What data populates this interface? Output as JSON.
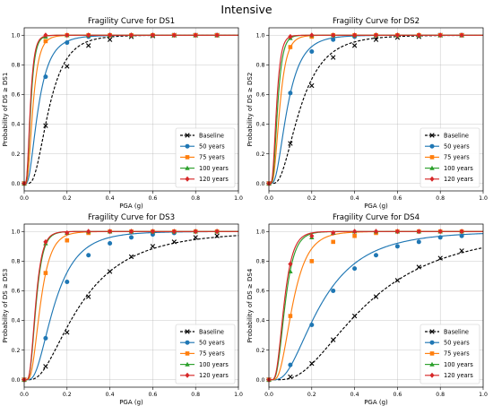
{
  "figure": {
    "suptitle": "Intensive"
  },
  "styles": {
    "Baseline": {
      "color": "#000000",
      "marker": "x",
      "dash": true
    },
    "50 years": {
      "color": "#1f77b4",
      "marker": "o"
    },
    "75 years": {
      "color": "#ff7f0e",
      "marker": "s"
    },
    "100 years": {
      "color": "#2ca02c",
      "marker": "^"
    },
    "120 years": {
      "color": "#d62728",
      "marker": "D"
    }
  },
  "chart_data": [
    {
      "type": "line",
      "title": "Fragility Curve for DS1",
      "xlabel": "PGA (g)",
      "ylabel": "Probability of DS ≥ DS1",
      "xlim": [
        0,
        1.0
      ],
      "ylim": [
        0,
        1.0
      ],
      "xticks": [
        "0.0",
        "0.2",
        "0.4",
        "0.6",
        "0.8",
        "1.0"
      ],
      "yticks": [
        "0.0",
        "0.2",
        "0.4",
        "0.6",
        "0.8",
        "1.0"
      ],
      "grid": true,
      "legend_position": "lower right",
      "x": [
        0.1,
        0.2,
        0.3,
        0.4,
        0.5,
        0.6,
        0.7,
        0.8,
        0.9
      ],
      "series": [
        {
          "name": "Baseline",
          "values": [
            0.39,
            0.79,
            0.93,
            0.97,
            0.99,
            0.995,
            1.0,
            1.0,
            1.0
          ],
          "median": 0.115,
          "beta": 0.55
        },
        {
          "name": "50 years",
          "values": [
            0.72,
            0.95,
            0.99,
            1.0,
            1.0,
            1.0,
            1.0,
            1.0,
            1.0
          ],
          "median": 0.065,
          "beta": 0.65
        },
        {
          "name": "75 years",
          "values": [
            0.96,
            1.0,
            1.0,
            1.0,
            1.0,
            1.0,
            1.0,
            1.0,
            1.0
          ],
          "median": 0.04,
          "beta": 0.55
        },
        {
          "name": "100 years",
          "values": [
            0.99,
            1.0,
            1.0,
            1.0,
            1.0,
            1.0,
            1.0,
            1.0,
            1.0
          ],
          "median": 0.03,
          "beta": 0.5
        },
        {
          "name": "120 years",
          "values": [
            1.0,
            1.0,
            1.0,
            1.0,
            1.0,
            1.0,
            1.0,
            1.0,
            1.0
          ],
          "median": 0.028,
          "beta": 0.5
        }
      ]
    },
    {
      "type": "line",
      "title": "Fragility Curve for DS2",
      "xlabel": "PGA (g)",
      "ylabel": "Probability of DS ≥ DS2",
      "xlim": [
        0,
        1.0
      ],
      "ylim": [
        0,
        1.0
      ],
      "xticks": [
        "0.0",
        "0.2",
        "0.4",
        "0.6",
        "0.8",
        "1.0"
      ],
      "yticks": [
        "0.0",
        "0.2",
        "0.4",
        "0.6",
        "0.8",
        "1.0"
      ],
      "grid": true,
      "legend_position": "lower right",
      "x": [
        0.1,
        0.2,
        0.3,
        0.4,
        0.5,
        0.6,
        0.7,
        0.8,
        0.9
      ],
      "series": [
        {
          "name": "Baseline",
          "values": [
            0.27,
            0.66,
            0.85,
            0.93,
            0.97,
            0.985,
            0.99,
            1.0,
            1.0
          ],
          "median": 0.145,
          "beta": 0.6
        },
        {
          "name": "50 years",
          "values": [
            0.61,
            0.89,
            0.97,
            0.99,
            1.0,
            1.0,
            1.0,
            1.0,
            1.0
          ],
          "median": 0.085,
          "beta": 0.6
        },
        {
          "name": "75 years",
          "values": [
            0.92,
            0.99,
            1.0,
            1.0,
            1.0,
            1.0,
            1.0,
            1.0,
            1.0
          ],
          "median": 0.05,
          "beta": 0.5
        },
        {
          "name": "100 years",
          "values": [
            0.98,
            1.0,
            1.0,
            1.0,
            1.0,
            1.0,
            1.0,
            1.0,
            1.0
          ],
          "median": 0.04,
          "beta": 0.45
        },
        {
          "name": "120 years",
          "values": [
            0.99,
            1.0,
            1.0,
            1.0,
            1.0,
            1.0,
            1.0,
            1.0,
            1.0
          ],
          "median": 0.035,
          "beta": 0.45
        }
      ]
    },
    {
      "type": "line",
      "title": "Fragility Curve for DS3",
      "xlabel": "PGA (g)",
      "ylabel": "Probability of DS ≥ DS3",
      "xlim": [
        0,
        1.0
      ],
      "ylim": [
        0,
        1.0
      ],
      "xticks": [
        "0.0",
        "0.2",
        "0.4",
        "0.6",
        "0.8",
        "1.0"
      ],
      "yticks": [
        "0.0",
        "0.2",
        "0.4",
        "0.6",
        "0.8",
        "1.0"
      ],
      "grid": true,
      "legend_position": "lower right",
      "x": [
        0.1,
        0.2,
        0.3,
        0.4,
        0.5,
        0.6,
        0.7,
        0.8,
        0.9
      ],
      "series": [
        {
          "name": "Baseline",
          "values": [
            0.09,
            0.32,
            0.56,
            0.73,
            0.83,
            0.9,
            0.93,
            0.96,
            0.97
          ],
          "median": 0.26,
          "beta": 0.7
        },
        {
          "name": "50 years",
          "values": [
            0.28,
            0.66,
            0.84,
            0.92,
            0.96,
            0.98,
            0.99,
            1.0,
            1.0
          ],
          "median": 0.14,
          "beta": 0.6
        },
        {
          "name": "75 years",
          "values": [
            0.72,
            0.94,
            0.99,
            1.0,
            1.0,
            1.0,
            1.0,
            1.0,
            1.0
          ],
          "median": 0.075,
          "beta": 0.5
        },
        {
          "name": "100 years",
          "values": [
            0.92,
            0.99,
            1.0,
            1.0,
            1.0,
            1.0,
            1.0,
            1.0,
            1.0
          ],
          "median": 0.055,
          "beta": 0.45
        },
        {
          "name": "120 years",
          "values": [
            0.93,
            0.99,
            1.0,
            1.0,
            1.0,
            1.0,
            1.0,
            1.0,
            1.0
          ],
          "median": 0.053,
          "beta": 0.45
        }
      ]
    },
    {
      "type": "line",
      "title": "Fragility Curve for DS4",
      "xlabel": "PGA (g)",
      "ylabel": "Probability of DS ≥ DS4",
      "xlim": [
        0,
        1.0
      ],
      "ylim": [
        0,
        1.0
      ],
      "xticks": [
        "0.0",
        "0.2",
        "0.4",
        "0.6",
        "0.8",
        "1.0"
      ],
      "yticks": [
        "0.0",
        "0.2",
        "0.4",
        "0.6",
        "0.8",
        "1.0"
      ],
      "grid": true,
      "legend_position": "lower right",
      "x": [
        0.1,
        0.2,
        0.3,
        0.4,
        0.5,
        0.6,
        0.7,
        0.8,
        0.9
      ],
      "series": [
        {
          "name": "Baseline",
          "values": [
            0.02,
            0.11,
            0.27,
            0.43,
            0.56,
            0.67,
            0.76,
            0.82,
            0.87
          ],
          "median": 0.45,
          "beta": 0.65
        },
        {
          "name": "50 years",
          "values": [
            0.1,
            0.37,
            0.6,
            0.75,
            0.84,
            0.9,
            0.93,
            0.96,
            0.97
          ],
          "median": 0.24,
          "beta": 0.65
        },
        {
          "name": "75 years",
          "values": [
            0.43,
            0.8,
            0.93,
            0.97,
            0.99,
            1.0,
            1.0,
            1.0,
            1.0
          ],
          "median": 0.11,
          "beta": 0.5
        },
        {
          "name": "100 years",
          "values": [
            0.73,
            0.96,
            0.99,
            1.0,
            1.0,
            1.0,
            1.0,
            1.0,
            1.0
          ],
          "median": 0.075,
          "beta": 0.45
        },
        {
          "name": "120 years",
          "values": [
            0.78,
            0.97,
            0.99,
            1.0,
            1.0,
            1.0,
            1.0,
            1.0,
            1.0
          ],
          "median": 0.07,
          "beta": 0.45
        }
      ]
    }
  ]
}
